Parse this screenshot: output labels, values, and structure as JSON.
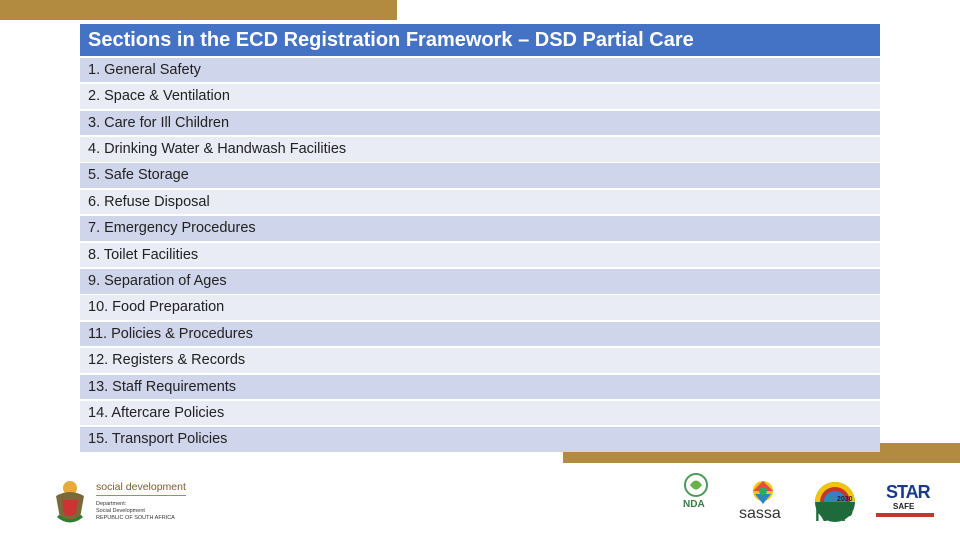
{
  "title": "Sections in the ECD Registration Framework – DSD Partial Care",
  "sections": [
    "1. General Safety",
    "2. Space & Ventilation",
    "3. Care for Ill Children",
    "4. Drinking Water & Handwash Facilities",
    "5. Safe Storage",
    "6. Refuse Disposal",
    "7. Emergency Procedures",
    "8. Toilet Facilities",
    "9. Separation of Ages",
    "10. Food Preparation",
    "11. Policies & Procedures",
    "12. Registers & Records",
    "13. Staff Requirements",
    "14. Aftercare Policies",
    "15. Transport Policies"
  ],
  "footer": {
    "dsd_name": "social development",
    "dsd_line1": "Department:",
    "dsd_line2": "Social Development",
    "dsd_line3": "REPUBLIC OF SOUTH AFRICA",
    "nda": "NDA",
    "sassa": "sassa",
    "ndp": "NDP",
    "ndp_year": "2030",
    "star": "STAR",
    "safe": "SAFE"
  },
  "colors": {
    "gold": "#b38b40",
    "header_blue": "#4472c4"
  }
}
